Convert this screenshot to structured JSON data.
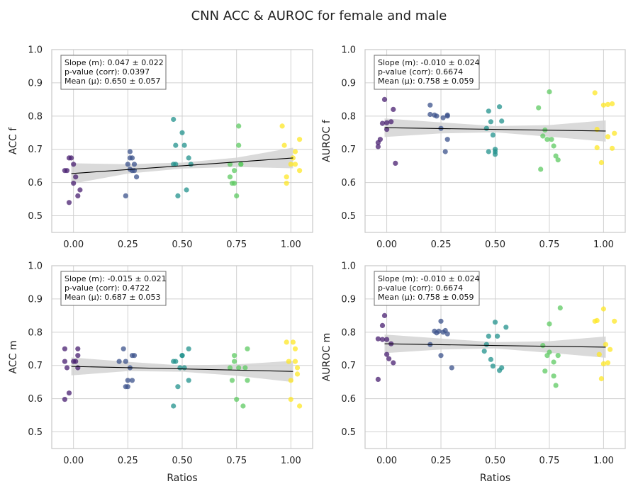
{
  "figure": {
    "title": "CNN ACC & AUROC for female and male"
  },
  "colors": {
    "groups": [
      "#481f70",
      "#3b528b",
      "#21918c",
      "#5ec962",
      "#fde725"
    ],
    "grid": "#d0d0d0",
    "frame": "#c8c8c8",
    "fit_line": "#000000",
    "ci_band": "#d3d3d3"
  },
  "chart_data": [
    {
      "type": "scatter",
      "title": "",
      "xlabel": "",
      "ylabel": "ACC f",
      "xlim": [
        -0.1,
        1.1
      ],
      "ylim": [
        0.45,
        1.0
      ],
      "xticks": [
        "0.00",
        "0.25",
        "0.50",
        "0.75",
        "1.00"
      ],
      "yticks": [
        "0.5",
        "0.6",
        "0.7",
        "0.8",
        "0.9",
        "1.0"
      ],
      "grid": true,
      "stats": [
        "Slope (m): 0.047 ± 0.022",
        "p-value (corr): 0.0397",
        "Mean (μ): 0.650 ± 0.057"
      ],
      "fit": {
        "x": [
          -0.01,
          1.01
        ],
        "y": [
          0.627,
          0.674
        ]
      },
      "ci": {
        "x": [
          -0.01,
          0.25,
          0.5,
          0.75,
          1.01
        ],
        "upper": [
          0.658,
          0.655,
          0.66,
          0.675,
          0.705
        ],
        "lower": [
          0.596,
          0.627,
          0.642,
          0.647,
          0.643
        ]
      },
      "series": [
        {
          "group": 0,
          "points": [
            [
              -0.03,
              0.636
            ],
            [
              -0.02,
              0.674
            ],
            [
              -0.01,
              0.674
            ],
            [
              0.0,
              0.655
            ],
            [
              0.0,
              0.598
            ],
            [
              0.01,
              0.617
            ],
            [
              0.02,
              0.56
            ],
            [
              0.03,
              0.578
            ],
            [
              -0.02,
              0.54
            ],
            [
              -0.04,
              0.636
            ]
          ]
        },
        {
          "group": 1,
          "points": [
            [
              0.24,
              0.56
            ],
            [
              0.25,
              0.655
            ],
            [
              0.26,
              0.693
            ],
            [
              0.26,
              0.674
            ],
            [
              0.27,
              0.636
            ],
            [
              0.27,
              0.674
            ],
            [
              0.28,
              0.655
            ],
            [
              0.28,
              0.636
            ],
            [
              0.29,
              0.617
            ],
            [
              0.26,
              0.64
            ]
          ]
        },
        {
          "group": 2,
          "points": [
            [
              0.46,
              0.79
            ],
            [
              0.47,
              0.712
            ],
            [
              0.47,
              0.655
            ],
            [
              0.48,
              0.56
            ],
            [
              0.5,
              0.75
            ],
            [
              0.51,
              0.712
            ],
            [
              0.52,
              0.578
            ],
            [
              0.53,
              0.674
            ],
            [
              0.54,
              0.655
            ],
            [
              0.46,
              0.655
            ]
          ]
        },
        {
          "group": 3,
          "points": [
            [
              0.72,
              0.655
            ],
            [
              0.72,
              0.617
            ],
            [
              0.73,
              0.598
            ],
            [
              0.74,
              0.636
            ],
            [
              0.75,
              0.56
            ],
            [
              0.76,
              0.77
            ],
            [
              0.76,
              0.712
            ],
            [
              0.77,
              0.655
            ],
            [
              0.77,
              0.655
            ],
            [
              0.74,
              0.598
            ]
          ]
        },
        {
          "group": 4,
          "points": [
            [
              0.96,
              0.77
            ],
            [
              0.97,
              0.712
            ],
            [
              0.98,
              0.617
            ],
            [
              0.98,
              0.598
            ],
            [
              1.0,
              0.655
            ],
            [
              1.01,
              0.674
            ],
            [
              1.02,
              0.693
            ],
            [
              1.02,
              0.655
            ],
            [
              1.04,
              0.73
            ],
            [
              1.04,
              0.636
            ]
          ]
        }
      ]
    },
    {
      "type": "scatter",
      "title": "",
      "xlabel": "",
      "ylabel": "AUROC f",
      "xlim": [
        -0.1,
        1.1
      ],
      "ylim": [
        0.45,
        1.0
      ],
      "xticks": [
        "0.00",
        "0.25",
        "0.50",
        "0.75",
        "1.00"
      ],
      "yticks": [
        "0.5",
        "0.6",
        "0.7",
        "0.8",
        "0.9",
        "1.0"
      ],
      "grid": true,
      "stats": [
        "Slope (m): -0.010 ± 0.024",
        "p-value (corr): 0.6674",
        "Mean (μ): 0.758 ± 0.059"
      ],
      "fit": {
        "x": [
          -0.01,
          1.01
        ],
        "y": [
          0.765,
          0.755
        ]
      },
      "ci": {
        "x": [
          -0.01,
          0.25,
          0.5,
          0.75,
          1.01
        ],
        "upper": [
          0.793,
          0.781,
          0.77,
          0.773,
          0.787
        ],
        "lower": [
          0.737,
          0.748,
          0.751,
          0.738,
          0.723
        ]
      },
      "series": [
        {
          "group": 0,
          "points": [
            [
              -0.04,
              0.708
            ],
            [
              -0.04,
              0.72
            ],
            [
              -0.03,
              0.73
            ],
            [
              -0.02,
              0.778
            ],
            [
              -0.01,
              0.85
            ],
            [
              0.0,
              0.76
            ],
            [
              0.0,
              0.78
            ],
            [
              0.02,
              0.783
            ],
            [
              0.03,
              0.82
            ],
            [
              0.04,
              0.658
            ]
          ]
        },
        {
          "group": 1,
          "points": [
            [
              0.2,
              0.833
            ],
            [
              0.2,
              0.805
            ],
            [
              0.22,
              0.803
            ],
            [
              0.23,
              0.8
            ],
            [
              0.25,
              0.763
            ],
            [
              0.26,
              0.795
            ],
            [
              0.27,
              0.693
            ],
            [
              0.28,
              0.73
            ],
            [
              0.28,
              0.803
            ],
            [
              0.28,
              0.8
            ]
          ]
        },
        {
          "group": 2,
          "points": [
            [
              0.46,
              0.763
            ],
            [
              0.47,
              0.815
            ],
            [
              0.47,
              0.693
            ],
            [
              0.48,
              0.783
            ],
            [
              0.49,
              0.743
            ],
            [
              0.5,
              0.693
            ],
            [
              0.5,
              0.685
            ],
            [
              0.52,
              0.828
            ],
            [
              0.53,
              0.785
            ],
            [
              0.5,
              0.7
            ]
          ]
        },
        {
          "group": 3,
          "points": [
            [
              0.7,
              0.825
            ],
            [
              0.71,
              0.64
            ],
            [
              0.72,
              0.74
            ],
            [
              0.73,
              0.758
            ],
            [
              0.74,
              0.73
            ],
            [
              0.75,
              0.873
            ],
            [
              0.76,
              0.73
            ],
            [
              0.77,
              0.71
            ],
            [
              0.78,
              0.68
            ],
            [
              0.79,
              0.668
            ]
          ]
        },
        {
          "group": 4,
          "points": [
            [
              0.96,
              0.87
            ],
            [
              0.97,
              0.76
            ],
            [
              0.97,
              0.705
            ],
            [
              0.99,
              0.66
            ],
            [
              1.0,
              0.833
            ],
            [
              1.02,
              0.835
            ],
            [
              1.02,
              0.738
            ],
            [
              1.04,
              0.837
            ],
            [
              1.04,
              0.703
            ],
            [
              1.05,
              0.748
            ]
          ]
        }
      ]
    },
    {
      "type": "scatter",
      "title": "",
      "xlabel": "Ratios",
      "ylabel": "ACC m",
      "xlim": [
        -0.1,
        1.1
      ],
      "ylim": [
        0.45,
        1.0
      ],
      "xticks": [
        "0.00",
        "0.25",
        "0.50",
        "0.75",
        "1.00"
      ],
      "yticks": [
        "0.5",
        "0.6",
        "0.7",
        "0.8",
        "0.9",
        "1.0"
      ],
      "grid": true,
      "stats": [
        "Slope (m): -0.015 ± 0.021",
        "p-value (corr): 0.4722",
        "Mean (μ): 0.687 ± 0.053"
      ],
      "fit": {
        "x": [
          -0.01,
          1.01
        ],
        "y": [
          0.697,
          0.682
        ]
      },
      "ci": {
        "x": [
          -0.01,
          0.25,
          0.5,
          0.75,
          1.01
        ],
        "upper": [
          0.724,
          0.711,
          0.7,
          0.703,
          0.714
        ],
        "lower": [
          0.67,
          0.683,
          0.681,
          0.669,
          0.65
        ]
      },
      "series": [
        {
          "group": 0,
          "points": [
            [
              -0.04,
              0.598
            ],
            [
              -0.04,
              0.712
            ],
            [
              -0.04,
              0.75
            ],
            [
              -0.03,
              0.693
            ],
            [
              -0.02,
              0.617
            ],
            [
              0.0,
              0.712
            ],
            [
              0.01,
              0.712
            ],
            [
              0.02,
              0.75
            ],
            [
              0.02,
              0.73
            ],
            [
              0.02,
              0.693
            ]
          ]
        },
        {
          "group": 1,
          "points": [
            [
              0.21,
              0.712
            ],
            [
              0.23,
              0.75
            ],
            [
              0.24,
              0.712
            ],
            [
              0.24,
              0.636
            ],
            [
              0.25,
              0.655
            ],
            [
              0.25,
              0.636
            ],
            [
              0.26,
              0.693
            ],
            [
              0.27,
              0.73
            ],
            [
              0.27,
              0.655
            ],
            [
              0.28,
              0.73
            ]
          ]
        },
        {
          "group": 2,
          "points": [
            [
              0.46,
              0.712
            ],
            [
              0.46,
              0.578
            ],
            [
              0.47,
              0.712
            ],
            [
              0.48,
              0.636
            ],
            [
              0.49,
              0.693
            ],
            [
              0.5,
              0.73
            ],
            [
              0.5,
              0.73
            ],
            [
              0.51,
              0.693
            ],
            [
              0.53,
              0.75
            ],
            [
              0.53,
              0.655
            ]
          ]
        },
        {
          "group": 3,
          "points": [
            [
              0.72,
              0.693
            ],
            [
              0.73,
              0.655
            ],
            [
              0.74,
              0.712
            ],
            [
              0.74,
              0.73
            ],
            [
              0.75,
              0.598
            ],
            [
              0.76,
              0.693
            ],
            [
              0.78,
              0.578
            ],
            [
              0.79,
              0.693
            ],
            [
              0.8,
              0.75
            ],
            [
              0.8,
              0.655
            ]
          ]
        },
        {
          "group": 4,
          "points": [
            [
              0.98,
              0.77
            ],
            [
              0.99,
              0.712
            ],
            [
              1.0,
              0.655
            ],
            [
              1.0,
              0.598
            ],
            [
              1.01,
              0.77
            ],
            [
              1.02,
              0.75
            ],
            [
              1.02,
              0.712
            ],
            [
              1.03,
              0.674
            ],
            [
              1.03,
              0.693
            ],
            [
              1.04,
              0.578
            ]
          ]
        }
      ]
    },
    {
      "type": "scatter",
      "title": "",
      "xlabel": "Ratios",
      "ylabel": "AUROC m",
      "xlim": [
        -0.1,
        1.1
      ],
      "ylim": [
        0.45,
        1.0
      ],
      "xticks": [
        "0.00",
        "0.25",
        "0.50",
        "0.75",
        "1.00"
      ],
      "yticks": [
        "0.5",
        "0.6",
        "0.7",
        "0.8",
        "0.9",
        "1.0"
      ],
      "grid": true,
      "stats": [
        "Slope (m): -0.010 ± 0.024",
        "p-value (corr): 0.6674",
        "Mean (μ): 0.758 ± 0.059"
      ],
      "fit": {
        "x": [
          -0.01,
          1.01
        ],
        "y": [
          0.765,
          0.755
        ]
      },
      "ci": {
        "x": [
          -0.01,
          0.25,
          0.5,
          0.75,
          1.01
        ],
        "upper": [
          0.793,
          0.781,
          0.77,
          0.773,
          0.787
        ],
        "lower": [
          0.737,
          0.748,
          0.751,
          0.738,
          0.723
        ]
      },
      "series": [
        {
          "group": 0,
          "points": [
            [
              -0.04,
              0.658
            ],
            [
              -0.04,
              0.78
            ],
            [
              -0.02,
              0.82
            ],
            [
              -0.02,
              0.778
            ],
            [
              -0.01,
              0.85
            ],
            [
              0.0,
              0.778
            ],
            [
              0.0,
              0.733
            ],
            [
              0.01,
              0.72
            ],
            [
              0.02,
              0.765
            ],
            [
              0.03,
              0.708
            ]
          ]
        },
        {
          "group": 1,
          "points": [
            [
              0.2,
              0.763
            ],
            [
              0.22,
              0.803
            ],
            [
              0.23,
              0.798
            ],
            [
              0.24,
              0.803
            ],
            [
              0.25,
              0.833
            ],
            [
              0.25,
              0.73
            ],
            [
              0.26,
              0.8
            ],
            [
              0.27,
              0.805
            ],
            [
              0.28,
              0.795
            ],
            [
              0.3,
              0.693
            ]
          ]
        },
        {
          "group": 2,
          "points": [
            [
              0.45,
              0.743
            ],
            [
              0.46,
              0.763
            ],
            [
              0.47,
              0.788
            ],
            [
              0.48,
              0.718
            ],
            [
              0.49,
              0.698
            ],
            [
              0.5,
              0.83
            ],
            [
              0.51,
              0.788
            ],
            [
              0.52,
              0.685
            ],
            [
              0.53,
              0.693
            ],
            [
              0.55,
              0.815
            ]
          ]
        },
        {
          "group": 3,
          "points": [
            [
              0.72,
              0.76
            ],
            [
              0.73,
              0.683
            ],
            [
              0.74,
              0.73
            ],
            [
              0.75,
              0.74
            ],
            [
              0.75,
              0.825
            ],
            [
              0.77,
              0.668
            ],
            [
              0.77,
              0.71
            ],
            [
              0.78,
              0.64
            ],
            [
              0.79,
              0.73
            ],
            [
              0.8,
              0.873
            ]
          ]
        },
        {
          "group": 4,
          "points": [
            [
              0.96,
              0.833
            ],
            [
              0.97,
              0.835
            ],
            [
              0.98,
              0.733
            ],
            [
              0.99,
              0.66
            ],
            [
              1.0,
              0.87
            ],
            [
              1.0,
              0.705
            ],
            [
              1.01,
              0.763
            ],
            [
              1.02,
              0.708
            ],
            [
              1.03,
              0.748
            ],
            [
              1.05,
              0.833
            ]
          ]
        }
      ]
    }
  ]
}
